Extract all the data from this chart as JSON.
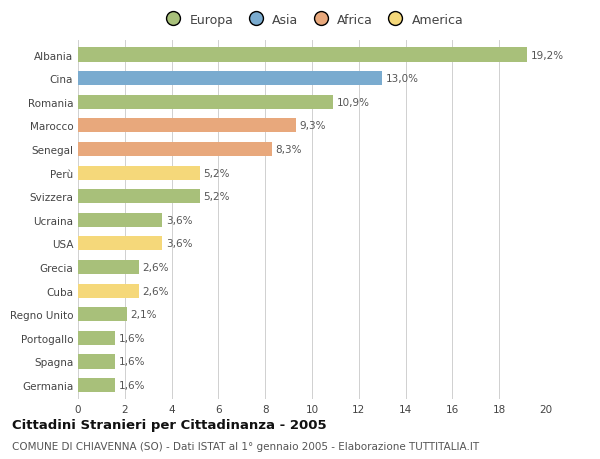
{
  "categories": [
    "Albania",
    "Cina",
    "Romania",
    "Marocco",
    "Senegal",
    "Perù",
    "Svizzera",
    "Ucraina",
    "USA",
    "Grecia",
    "Cuba",
    "Regno Unito",
    "Portogallo",
    "Spagna",
    "Germania"
  ],
  "values": [
    19.2,
    13.0,
    10.9,
    9.3,
    8.3,
    5.2,
    5.2,
    3.6,
    3.6,
    2.6,
    2.6,
    2.1,
    1.6,
    1.6,
    1.6
  ],
  "labels": [
    "19,2%",
    "13,0%",
    "10,9%",
    "9,3%",
    "8,3%",
    "5,2%",
    "5,2%",
    "3,6%",
    "3,6%",
    "2,6%",
    "2,6%",
    "2,1%",
    "1,6%",
    "1,6%",
    "1,6%"
  ],
  "colors": [
    "#a8c07a",
    "#7aabcf",
    "#a8c07a",
    "#e8a87c",
    "#e8a87c",
    "#f5d87a",
    "#a8c07a",
    "#a8c07a",
    "#f5d87a",
    "#a8c07a",
    "#f5d87a",
    "#a8c07a",
    "#a8c07a",
    "#a8c07a",
    "#a8c07a"
  ],
  "legend_labels": [
    "Europa",
    "Asia",
    "Africa",
    "America"
  ],
  "legend_colors": [
    "#a8c07a",
    "#7aabcf",
    "#e8a87c",
    "#f5d87a"
  ],
  "xlim": [
    0,
    20
  ],
  "xticks": [
    0,
    2,
    4,
    6,
    8,
    10,
    12,
    14,
    16,
    18,
    20
  ],
  "title": "Cittadini Stranieri per Cittadinanza - 2005",
  "subtitle": "COMUNE DI CHIAVENNA (SO) - Dati ISTAT al 1° gennaio 2005 - Elaborazione TUTTITALIA.IT",
  "background_color": "#ffffff",
  "grid_color": "#d0d0d0",
  "bar_height": 0.6,
  "label_fontsize": 7.5,
  "ytick_fontsize": 7.5,
  "xtick_fontsize": 7.5,
  "title_fontsize": 9.5,
  "subtitle_fontsize": 7.5
}
